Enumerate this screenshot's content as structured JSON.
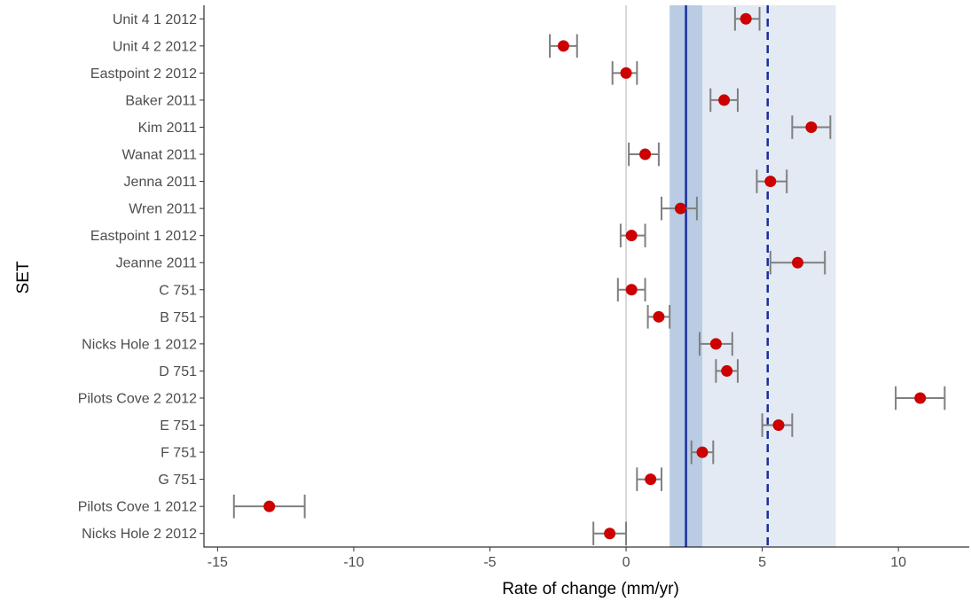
{
  "chart_data": {
    "type": "scatter",
    "xlabel": "Rate of change (mm/yr)",
    "ylabel": "SET",
    "xlim": [
      -15.5,
      12.6
    ],
    "x_ticks": [
      -15,
      -10,
      -5,
      0,
      5,
      10
    ],
    "x_tick_labels": [
      "-15",
      "-10",
      "-5",
      "0",
      "5",
      "10"
    ],
    "grid": false,
    "reference_lines": {
      "zero": 0,
      "solid_mean": 2.2,
      "dashed_mean": 5.2,
      "inner_band": [
        1.6,
        2.8
      ],
      "outer_band": [
        1.6,
        7.7
      ]
    },
    "colors": {
      "point": "#cc0000",
      "error_bar": "#7f7f7f",
      "solid_line": "#1a2fa0",
      "dashed_line": "#1a2fa0",
      "inner_band": "#b9cce3",
      "outer_band": "#e3eaf4",
      "zero_line": "#b3b3b3"
    },
    "points": [
      {
        "label": "Unit 4 1 2012",
        "x": 4.4,
        "lo": 4.0,
        "hi": 4.9
      },
      {
        "label": "Unit 4 2 2012",
        "x": -2.3,
        "lo": -2.8,
        "hi": -1.8
      },
      {
        "label": "Eastpoint 2 2012",
        "x": 0.0,
        "lo": -0.5,
        "hi": 0.4
      },
      {
        "label": "Baker 2011",
        "x": 3.6,
        "lo": 3.1,
        "hi": 4.1
      },
      {
        "label": "Kim 2011",
        "x": 6.8,
        "lo": 6.1,
        "hi": 7.5
      },
      {
        "label": "Wanat 2011",
        "x": 0.7,
        "lo": 0.1,
        "hi": 1.2
      },
      {
        "label": "Jenna 2011",
        "x": 5.3,
        "lo": 4.8,
        "hi": 5.9
      },
      {
        "label": "Wren 2011",
        "x": 2.0,
        "lo": 1.3,
        "hi": 2.6
      },
      {
        "label": "Eastpoint 1 2012",
        "x": 0.2,
        "lo": -0.2,
        "hi": 0.7
      },
      {
        "label": "Jeanne 2011",
        "x": 6.3,
        "lo": 5.3,
        "hi": 7.3
      },
      {
        "label": "C 751",
        "x": 0.2,
        "lo": -0.3,
        "hi": 0.7
      },
      {
        "label": "B 751",
        "x": 1.2,
        "lo": 0.8,
        "hi": 1.6
      },
      {
        "label": "Nicks Hole 1 2012",
        "x": 3.3,
        "lo": 2.7,
        "hi": 3.9
      },
      {
        "label": "D 751",
        "x": 3.7,
        "lo": 3.3,
        "hi": 4.1
      },
      {
        "label": "Pilots Cove 2 2012",
        "x": 10.8,
        "lo": 9.9,
        "hi": 11.7
      },
      {
        "label": "E 751",
        "x": 5.6,
        "lo": 5.0,
        "hi": 6.1
      },
      {
        "label": "F 751",
        "x": 2.8,
        "lo": 2.4,
        "hi": 3.2
      },
      {
        "label": "G 751",
        "x": 0.9,
        "lo": 0.4,
        "hi": 1.3
      },
      {
        "label": "Pilots Cove 1 2012",
        "x": -13.1,
        "lo": -14.4,
        "hi": -11.8
      },
      {
        "label": "Nicks Hole 2 2012",
        "x": -0.6,
        "lo": -1.2,
        "hi": 0.0
      }
    ]
  }
}
